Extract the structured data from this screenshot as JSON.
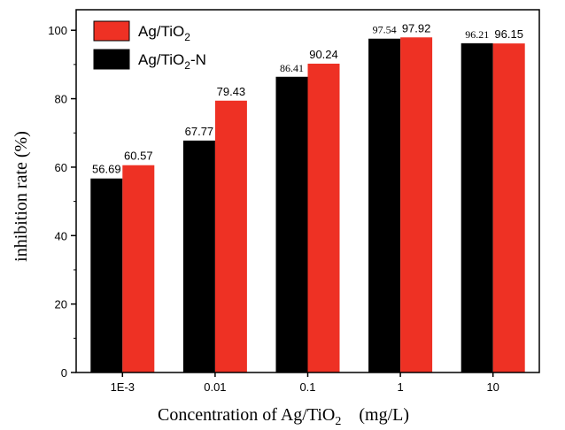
{
  "chart_data": {
    "type": "bar",
    "categories": [
      "1E-3",
      "0.01",
      "0.1",
      "1",
      "10"
    ],
    "series": [
      {
        "name": "Ag/TiO2-N",
        "color": "#000000",
        "values": [
          56.69,
          67.77,
          86.41,
          97.54,
          96.21
        ]
      },
      {
        "name": "Ag/TiO2",
        "color": "#ee3124",
        "values": [
          60.57,
          79.43,
          90.24,
          97.92,
          96.15
        ]
      }
    ],
    "data_labels": [
      [
        "56.69",
        "67.77",
        "86.41",
        "97.54",
        "96.21"
      ],
      [
        "60.57",
        "79.43",
        "90.24",
        "97.92",
        "96.15"
      ]
    ],
    "legend": {
      "placement": "top-left",
      "entries": [
        {
          "base": "Ag/TiO",
          "sub": "2",
          "suffix": "",
          "color": "#ee3124"
        },
        {
          "base": "Ag/TiO",
          "sub": "2",
          "suffix": "-N",
          "color": "#000000"
        }
      ]
    },
    "xlabel": {
      "base": "Concentration of Ag/TiO",
      "sub": "2",
      "suffix": "　(mg/L)"
    },
    "ylabel": "inhibition rate (%)",
    "ylim": [
      0,
      106
    ],
    "yticks": [
      0,
      20,
      40,
      60,
      80,
      100
    ],
    "grid": false
  }
}
